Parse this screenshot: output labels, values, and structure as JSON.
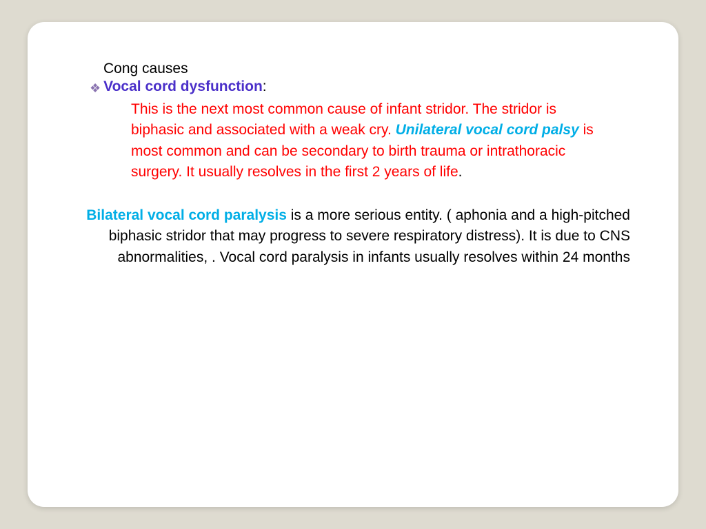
{
  "slide": {
    "background_color": "#dedbd0",
    "card_background": "#ffffff",
    "card_border_radius": 24,
    "font_family": "Verdana",
    "base_fontsize": 21,
    "colors": {
      "heading_purple": "#4a2fc9",
      "body_red": "#ff0000",
      "highlight_cyan": "#00aee6",
      "body_black": "#000000",
      "bullet": "#8a73b0"
    },
    "line1": "Cong causes",
    "heading": "Vocal cord dysfunction",
    "heading_suffix": ":",
    "para1_a": "This is the next most common cause of infant stridor. The stridor is biphasic and associated with a weak cry. ",
    "para1_highlight": "Unilateral vocal cord palsy",
    "para1_b": " is most common and can be secondary to birth trauma or intrathoracic surgery. It usually resolves in the first 2 years of life",
    "para1_dot": ".",
    "para2_highlight": "Bilateral vocal cord paralysis",
    "para2_body": " is a more serious entity. ( aphonia and a high-pitched biphasic stridor that may progress to severe respiratory distress). It is due to  CNS abnormalities, . Vocal cord paralysis in infants usually resolves within 24 months"
  }
}
